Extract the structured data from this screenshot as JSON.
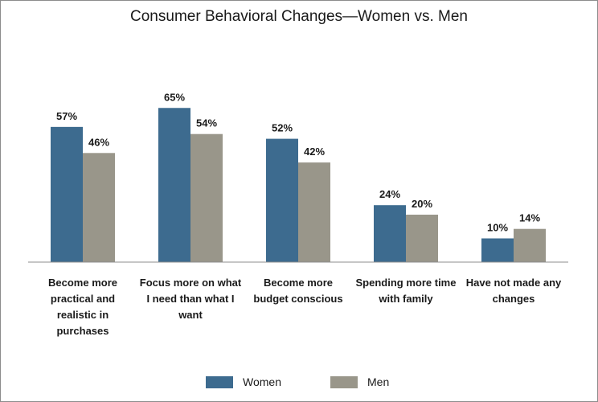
{
  "chart_data": {
    "type": "bar",
    "title": "Consumer Behavioral Changes—Women vs. Men",
    "categories": [
      "Become more practical and realistic in purchases",
      "Focus more on what I need than what I want",
      "Become more budget conscious",
      "Spending more time with family",
      "Have not made any changes"
    ],
    "category_lines": [
      [
        "Become more",
        "practical and",
        "realistic in",
        "purchases"
      ],
      [
        "Focus more on what",
        "I need than what I",
        "want"
      ],
      [
        "Become more",
        "budget conscious"
      ],
      [
        "Spending more time",
        "with family"
      ],
      [
        "Have not made any",
        "changes"
      ]
    ],
    "series": [
      {
        "name": "Women",
        "color": "#3d6b8f",
        "values": [
          57,
          65,
          52,
          24,
          10
        ]
      },
      {
        "name": "Men",
        "color": "#99968a",
        "values": [
          46,
          54,
          42,
          20,
          14
        ]
      }
    ],
    "value_suffix": "%",
    "ylim": [
      0,
      70
    ],
    "grid": false,
    "legend_position": "bottom"
  }
}
